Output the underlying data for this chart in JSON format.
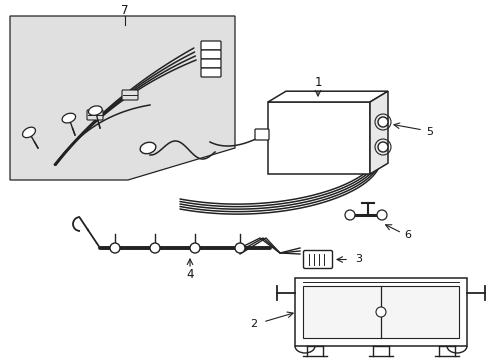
{
  "bg_color": "#ffffff",
  "line_color": "#222222",
  "inset_bg": "#e0e0e0",
  "label_color": "#111111",
  "figsize": [
    4.89,
    3.6
  ],
  "dpi": 100
}
